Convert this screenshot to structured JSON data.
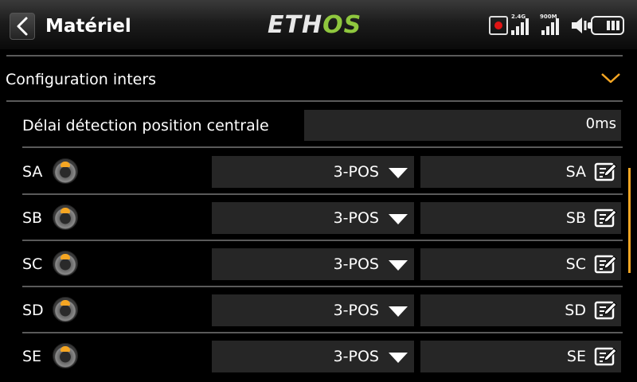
{
  "header": {
    "title": "Matériel",
    "logo_eth": "ETH",
    "logo_os": "OS",
    "band1_label": "2.4G",
    "band2_label": "900M",
    "icons": [
      "back-icon",
      "record-icon",
      "signal-2g4-icon",
      "signal-900m-icon",
      "volume-icon",
      "battery-icon"
    ]
  },
  "section": {
    "title": "Configuration inters",
    "expanded": true
  },
  "delay": {
    "label": "Délai détection position centrale",
    "value": "0ms"
  },
  "switches": [
    {
      "label": "SA",
      "mode": "3-POS",
      "name": "SA"
    },
    {
      "label": "SB",
      "mode": "3-POS",
      "name": "SB"
    },
    {
      "label": "SC",
      "mode": "3-POS",
      "name": "SC"
    },
    {
      "label": "SD",
      "mode": "3-POS",
      "name": "SD"
    },
    {
      "label": "SE",
      "mode": "3-POS",
      "name": "SE"
    }
  ],
  "colors": {
    "accent": "#f5a623",
    "logo_green": "#8fc73e",
    "record": "#e01414",
    "field_bg": "#262626"
  }
}
